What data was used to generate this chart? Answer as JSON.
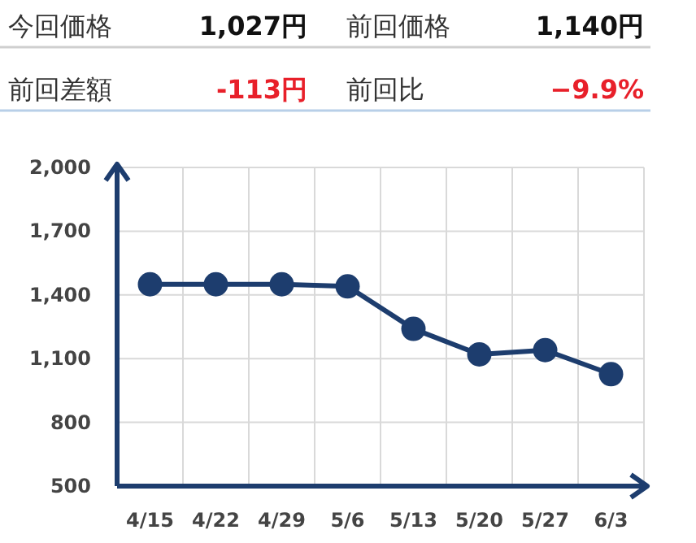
{
  "chart_data": {
    "type": "line",
    "categories": [
      "4/15",
      "4/22",
      "4/29",
      "5/6",
      "5/13",
      "5/20",
      "5/27",
      "6/3"
    ],
    "series": [
      {
        "color": "#1d3d6e",
        "values": [
          1450,
          1450,
          1450,
          1440,
          1240,
          1120,
          1140,
          1027
        ]
      }
    ],
    "ylim": [
      500,
      2000
    ],
    "yticks": [
      {
        "value": 500,
        "label": "500"
      },
      {
        "value": 800,
        "label": "800"
      },
      {
        "value": 1100,
        "label": "1,100"
      },
      {
        "value": 1400,
        "label": "1,400"
      },
      {
        "value": 1700,
        "label": "1,700"
      },
      {
        "value": 2000,
        "label": "2,000"
      }
    ],
    "grid": true,
    "marker": "circle",
    "line_style": "solid",
    "annotations": [
      "今回価格",
      "1,027円",
      "前回価格",
      "1,140円",
      "前回差額",
      "-113円",
      "前回比",
      "−9.9%"
    ]
  }
}
